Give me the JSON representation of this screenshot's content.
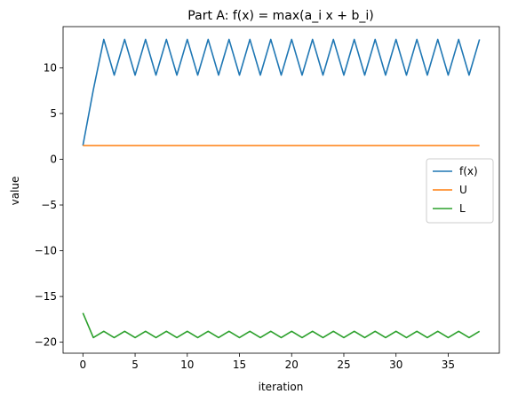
{
  "chart_data": {
    "type": "line",
    "title": "Part A: f(x) = max(a_i x + b_i)",
    "xlabel": "iteration",
    "ylabel": "value",
    "xlim": [
      -1.9,
      39.9
    ],
    "ylim": [
      -21.2,
      14.5
    ],
    "xticks": [
      0,
      5,
      10,
      15,
      20,
      25,
      30,
      35
    ],
    "yticks": [
      -20,
      -15,
      -10,
      -5,
      0,
      5,
      10
    ],
    "grid": false,
    "legend_position": "center-right",
    "x": [
      0,
      1,
      2,
      3,
      4,
      5,
      6,
      7,
      8,
      9,
      10,
      11,
      12,
      13,
      14,
      15,
      16,
      17,
      18,
      19,
      20,
      21,
      22,
      23,
      24,
      25,
      26,
      27,
      28,
      29,
      30,
      31,
      32,
      33,
      34,
      35,
      36,
      37,
      38
    ],
    "series": [
      {
        "name": "f(x)",
        "color": "#1f77b4",
        "values": [
          1.5,
          7.6,
          13.1,
          9.2,
          13.1,
          9.2,
          13.1,
          9.2,
          13.1,
          9.2,
          13.1,
          9.2,
          13.1,
          9.2,
          13.1,
          9.2,
          13.1,
          9.2,
          13.1,
          9.2,
          13.1,
          9.2,
          13.1,
          9.2,
          13.1,
          9.2,
          13.1,
          9.2,
          13.1,
          9.2,
          13.1,
          9.2,
          13.1,
          9.2,
          13.1,
          9.2,
          13.1,
          9.2,
          13.1
        ]
      },
      {
        "name": "U",
        "color": "#ff7f0e",
        "values": [
          1.5,
          1.5,
          1.5,
          1.5,
          1.5,
          1.5,
          1.5,
          1.5,
          1.5,
          1.5,
          1.5,
          1.5,
          1.5,
          1.5,
          1.5,
          1.5,
          1.5,
          1.5,
          1.5,
          1.5,
          1.5,
          1.5,
          1.5,
          1.5,
          1.5,
          1.5,
          1.5,
          1.5,
          1.5,
          1.5,
          1.5,
          1.5,
          1.5,
          1.5,
          1.5,
          1.5,
          1.5,
          1.5,
          1.5
        ]
      },
      {
        "name": "L",
        "color": "#2ca02c",
        "values": [
          -16.8,
          -19.5,
          -18.8,
          -19.5,
          -18.8,
          -19.5,
          -18.8,
          -19.5,
          -18.8,
          -19.5,
          -18.8,
          -19.5,
          -18.8,
          -19.5,
          -18.8,
          -19.5,
          -18.8,
          -19.5,
          -18.8,
          -19.5,
          -18.8,
          -19.5,
          -18.8,
          -19.5,
          -18.8,
          -19.5,
          -18.8,
          -19.5,
          -18.8,
          -19.5,
          -18.8,
          -19.5,
          -18.8,
          -19.5,
          -18.8,
          -19.5,
          -18.8,
          -19.5,
          -18.8
        ]
      }
    ]
  }
}
